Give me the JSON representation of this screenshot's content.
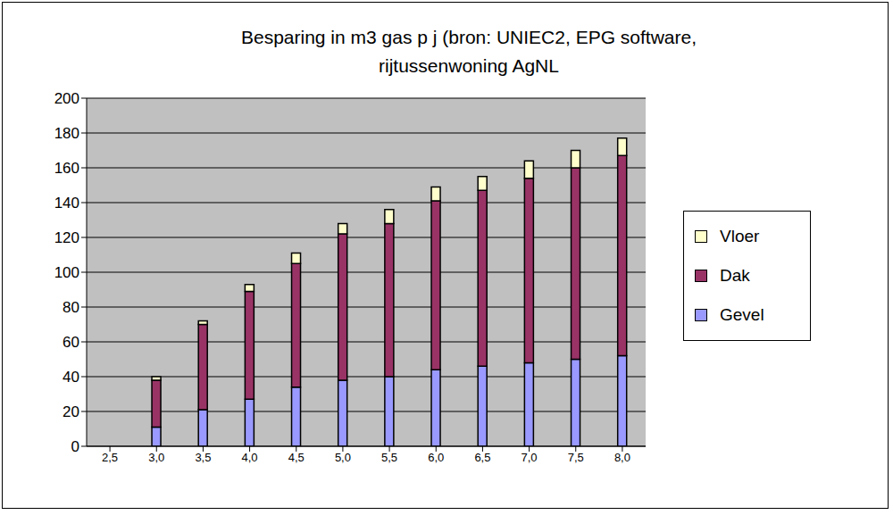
{
  "chart_data": {
    "type": "bar",
    "title": "Besparing in m3 gas p j (bron: UNIEC2, EPG software, rijtussenwoning AgNL",
    "categories": [
      "2,5",
      "3,0",
      "3,5",
      "4,0",
      "4,5",
      "5,0",
      "5,5",
      "6,0",
      "6,5",
      "7,0",
      "7,5",
      "8,0"
    ],
    "series": [
      {
        "name": "Gevel",
        "color": "#9999ff",
        "values": [
          null,
          11,
          21,
          27,
          34,
          38,
          40,
          44,
          46,
          48,
          50,
          52
        ]
      },
      {
        "name": "Dak",
        "color": "#993366",
        "values": [
          null,
          27,
          49,
          62,
          71,
          84,
          88,
          97,
          101,
          106,
          110,
          115
        ]
      },
      {
        "name": "Vloer",
        "color": "#ffffcc",
        "values": [
          null,
          2,
          2,
          4,
          6,
          6,
          8,
          8,
          8,
          10,
          10,
          10
        ]
      }
    ],
    "stacked": true,
    "ylim": [
      0,
      200
    ],
    "yticks": [
      0,
      20,
      40,
      60,
      80,
      100,
      120,
      140,
      160,
      180,
      200
    ],
    "grid": true,
    "legend": "right"
  }
}
